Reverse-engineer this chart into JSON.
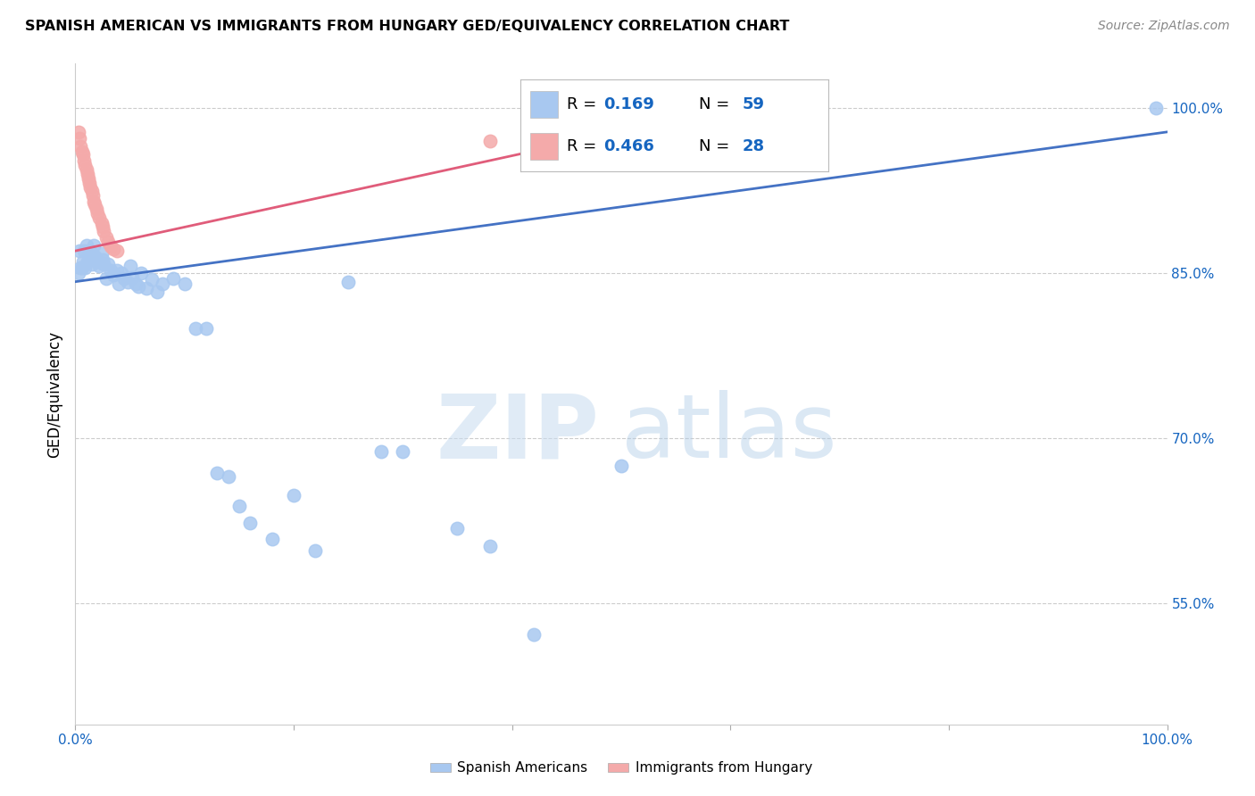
{
  "title": "SPANISH AMERICAN VS IMMIGRANTS FROM HUNGARY GED/EQUIVALENCY CORRELATION CHART",
  "source": "Source: ZipAtlas.com",
  "ylabel": "GED/Equivalency",
  "xlim": [
    0.0,
    1.0
  ],
  "ylim": [
    0.44,
    1.04
  ],
  "xticks": [
    0.0,
    0.2,
    0.4,
    0.6,
    0.8,
    1.0
  ],
  "xticklabels": [
    "0.0%",
    "",
    "",
    "",
    "",
    "100.0%"
  ],
  "ytick_positions": [
    0.55,
    0.7,
    0.85,
    1.0
  ],
  "ytick_labels": [
    "55.0%",
    "70.0%",
    "85.0%",
    "100.0%"
  ],
  "blue_R": "0.169",
  "blue_N": "59",
  "pink_R": "0.466",
  "pink_N": "28",
  "blue_color": "#A8C8F0",
  "blue_line_color": "#4472C4",
  "pink_color": "#F4AAAA",
  "pink_line_color": "#E05C7A",
  "legend_R_color": "#1565C0",
  "blue_scatter_x": [
    0.003,
    0.004,
    0.005,
    0.006,
    0.007,
    0.008,
    0.009,
    0.01,
    0.011,
    0.012,
    0.013,
    0.014,
    0.015,
    0.016,
    0.017,
    0.018,
    0.019,
    0.02,
    0.022,
    0.024,
    0.025,
    0.026,
    0.028,
    0.03,
    0.032,
    0.035,
    0.038,
    0.04,
    0.042,
    0.045,
    0.048,
    0.05,
    0.052,
    0.055,
    0.058,
    0.06,
    0.065,
    0.07,
    0.075,
    0.08,
    0.09,
    0.1,
    0.11,
    0.12,
    0.13,
    0.14,
    0.15,
    0.16,
    0.18,
    0.2,
    0.22,
    0.25,
    0.28,
    0.3,
    0.35,
    0.38,
    0.42,
    0.5,
    0.99
  ],
  "blue_scatter_y": [
    0.85,
    0.87,
    0.855,
    0.855,
    0.86,
    0.87,
    0.855,
    0.875,
    0.86,
    0.87,
    0.865,
    0.87,
    0.858,
    0.865,
    0.875,
    0.865,
    0.862,
    0.86,
    0.856,
    0.868,
    0.862,
    0.858,
    0.845,
    0.858,
    0.852,
    0.848,
    0.852,
    0.84,
    0.85,
    0.845,
    0.842,
    0.856,
    0.846,
    0.84,
    0.838,
    0.85,
    0.836,
    0.844,
    0.833,
    0.84,
    0.845,
    0.84,
    0.8,
    0.8,
    0.668,
    0.665,
    0.638,
    0.623,
    0.608,
    0.648,
    0.598,
    0.842,
    0.688,
    0.688,
    0.618,
    0.602,
    0.522,
    0.675,
    1.0
  ],
  "pink_scatter_x": [
    0.003,
    0.004,
    0.005,
    0.006,
    0.007,
    0.008,
    0.009,
    0.01,
    0.011,
    0.012,
    0.013,
    0.014,
    0.015,
    0.016,
    0.017,
    0.018,
    0.019,
    0.02,
    0.022,
    0.024,
    0.025,
    0.026,
    0.028,
    0.03,
    0.032,
    0.035,
    0.038,
    0.38
  ],
  "pink_scatter_y": [
    0.978,
    0.972,
    0.965,
    0.96,
    0.958,
    0.952,
    0.948,
    0.944,
    0.94,
    0.936,
    0.932,
    0.928,
    0.924,
    0.92,
    0.915,
    0.912,
    0.908,
    0.904,
    0.9,
    0.895,
    0.892,
    0.888,
    0.882,
    0.878,
    0.874,
    0.872,
    0.87,
    0.97
  ],
  "blue_trendline_x": [
    0.0,
    1.0
  ],
  "blue_trendline_y": [
    0.842,
    0.978
  ],
  "pink_trendline_x": [
    0.0,
    0.5
  ],
  "pink_trendline_y": [
    0.87,
    0.978
  ]
}
